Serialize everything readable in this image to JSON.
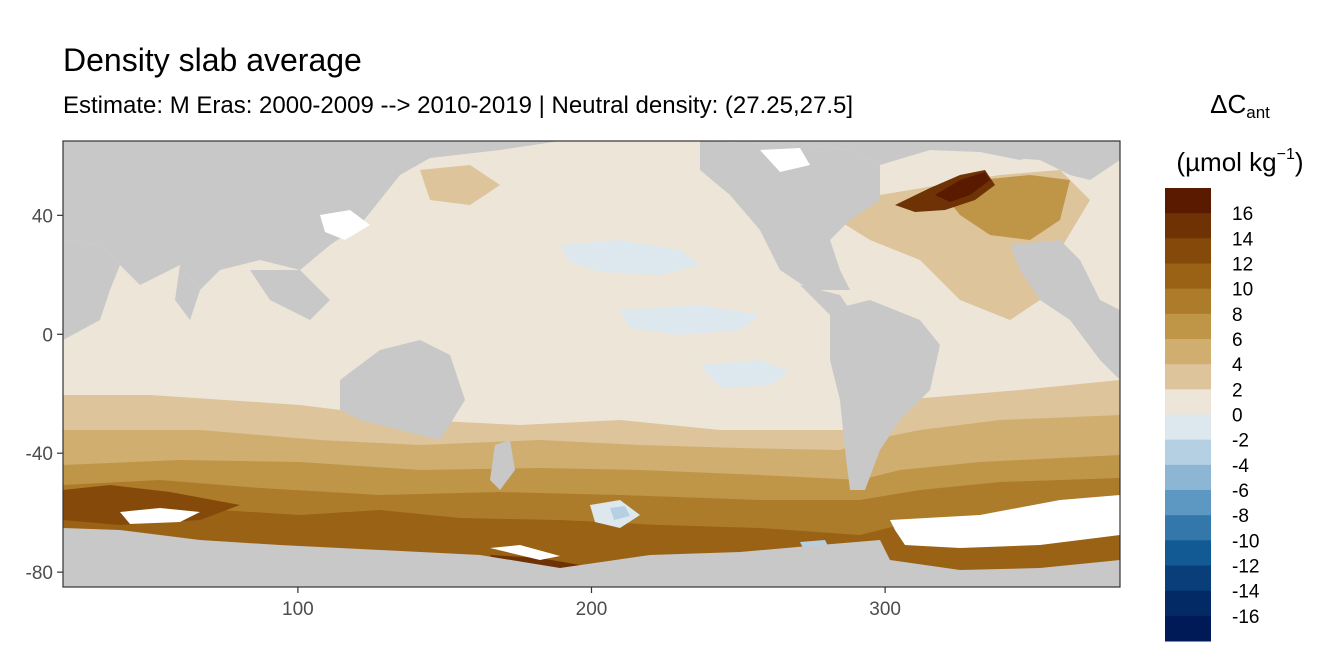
{
  "title": "Density slab average",
  "subtitle": "Estimate: M Eras: 2000-2009 --> 2010-2019 | Neutral density: (27.25,27.5]",
  "legend": {
    "title_line1_main": "ΔC",
    "title_line1_sub": "ant",
    "title_line2_main": "(µmol kg",
    "title_line2_sup": "−1",
    "title_line2_end": ")"
  },
  "colors": {
    "land": "#c8c8c8",
    "ice": "#ffffff",
    "scale": [
      "#5a1a00",
      "#6e3205",
      "#854a0a",
      "#9a6214",
      "#ad7c2a",
      "#bf9548",
      "#cfae70",
      "#ddc49a",
      "#ece5d8",
      "#dde8ee",
      "#b5d0e2",
      "#8cb6d4",
      "#5c98c2",
      "#3478ab",
      "#125a94",
      "#083f7b",
      "#042a66",
      "#001a57"
    ]
  },
  "chart_data": {
    "type": "heatmap",
    "title": "Density slab average",
    "subtitle": "Estimate: M Eras: 2000-2009 --> 2010-2019 | Neutral density: (27.25,27.5]",
    "xlabel": "",
    "ylabel": "",
    "xlim": [
      20,
      380
    ],
    "ylim": [
      -85,
      65
    ],
    "x_ticks": [
      100,
      200,
      300
    ],
    "y_ticks": [
      40,
      0,
      -40,
      -80
    ],
    "color_scale": {
      "name": "ΔCant (µmol kg−1)",
      "breaks": [
        16,
        14,
        12,
        10,
        8,
        6,
        4,
        2,
        0,
        -2,
        -4,
        -6,
        -8,
        -10,
        -12,
        -14,
        -16
      ],
      "range": [
        -18,
        18
      ]
    },
    "grid": false,
    "legend_position": "right"
  }
}
